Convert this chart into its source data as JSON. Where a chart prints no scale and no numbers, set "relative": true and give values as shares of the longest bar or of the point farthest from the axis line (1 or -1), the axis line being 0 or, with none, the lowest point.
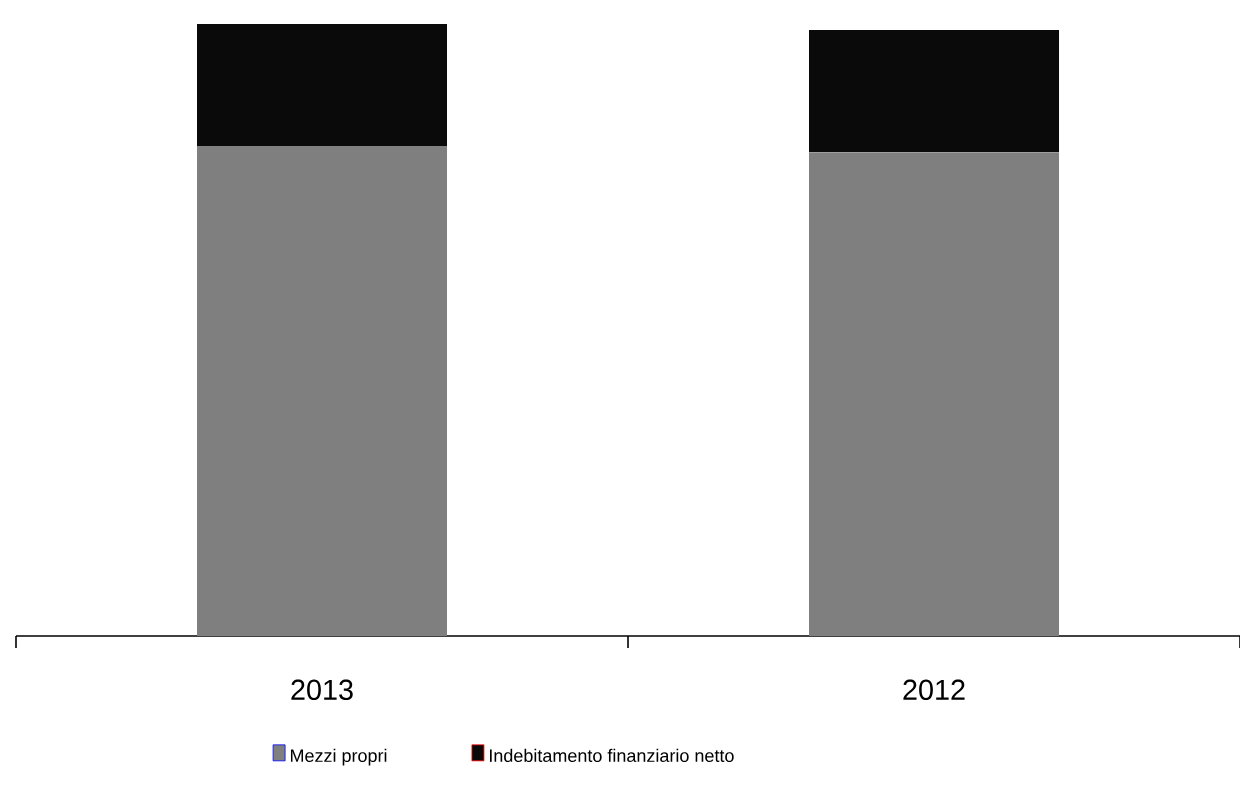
{
  "chart_data": {
    "type": "bar",
    "stacked": true,
    "relative": true,
    "legend": "bottom",
    "categories": [
      "2013",
      "2012"
    ],
    "series": [
      {
        "name": "Mezzi propri",
        "color": "#7f7f7f",
        "values": [
          0.8,
          0.79
        ]
      },
      {
        "name": "Indebitamento finanziario netto",
        "color": "#0a0a0a",
        "values": [
          0.2,
          0.2
        ]
      }
    ]
  }
}
